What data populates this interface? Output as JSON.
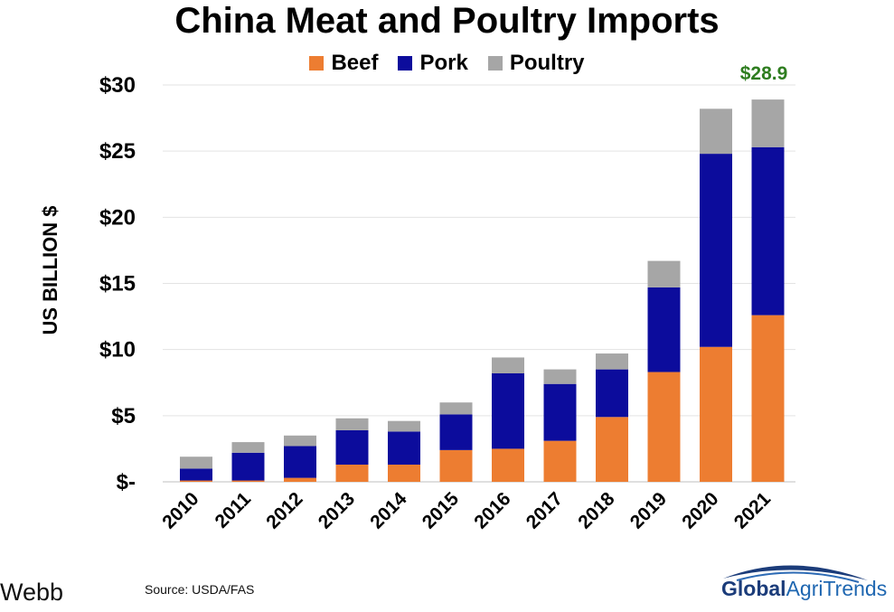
{
  "chart_data": {
    "type": "bar",
    "stacked": true,
    "title": "China Meat and Poultry Imports",
    "ylabel": "US BILLION $",
    "ylim": [
      0,
      30
    ],
    "yticks": [
      {
        "value": 0,
        "label": "$-"
      },
      {
        "value": 5,
        "label": "$5"
      },
      {
        "value": 10,
        "label": "$10"
      },
      {
        "value": 15,
        "label": "$15"
      },
      {
        "value": 20,
        "label": "$20"
      },
      {
        "value": 25,
        "label": "$25"
      },
      {
        "value": 30,
        "label": "$30"
      }
    ],
    "grid": true,
    "legend_position": "top",
    "categories": [
      "2010",
      "2011",
      "2012",
      "2013",
      "2014",
      "2015",
      "2016",
      "2017",
      "2018",
      "2019",
      "2020",
      "2021"
    ],
    "series": [
      {
        "name": "Beef",
        "color": "#ed7d31",
        "values": [
          0.1,
          0.1,
          0.3,
          1.3,
          1.3,
          2.4,
          2.5,
          3.1,
          4.9,
          8.3,
          10.2,
          12.6
        ]
      },
      {
        "name": "Pork",
        "color": "#0c0c9c",
        "values": [
          0.9,
          2.1,
          2.4,
          2.6,
          2.5,
          2.7,
          5.7,
          4.3,
          3.6,
          6.4,
          14.6,
          12.7
        ]
      },
      {
        "name": "Poultry",
        "color": "#a6a6a6",
        "values": [
          0.9,
          0.8,
          0.8,
          0.9,
          0.8,
          0.9,
          1.2,
          1.1,
          1.2,
          2.0,
          3.4,
          3.6
        ]
      }
    ],
    "annotation": {
      "category": "2021",
      "text": "$28.9",
      "color": "#2e7d1f"
    }
  },
  "footer": {
    "author_fragment": "Webb",
    "source": "Source:  USDA/FAS",
    "logo_bold": "Global",
    "logo_regular": "AgriTrends"
  }
}
